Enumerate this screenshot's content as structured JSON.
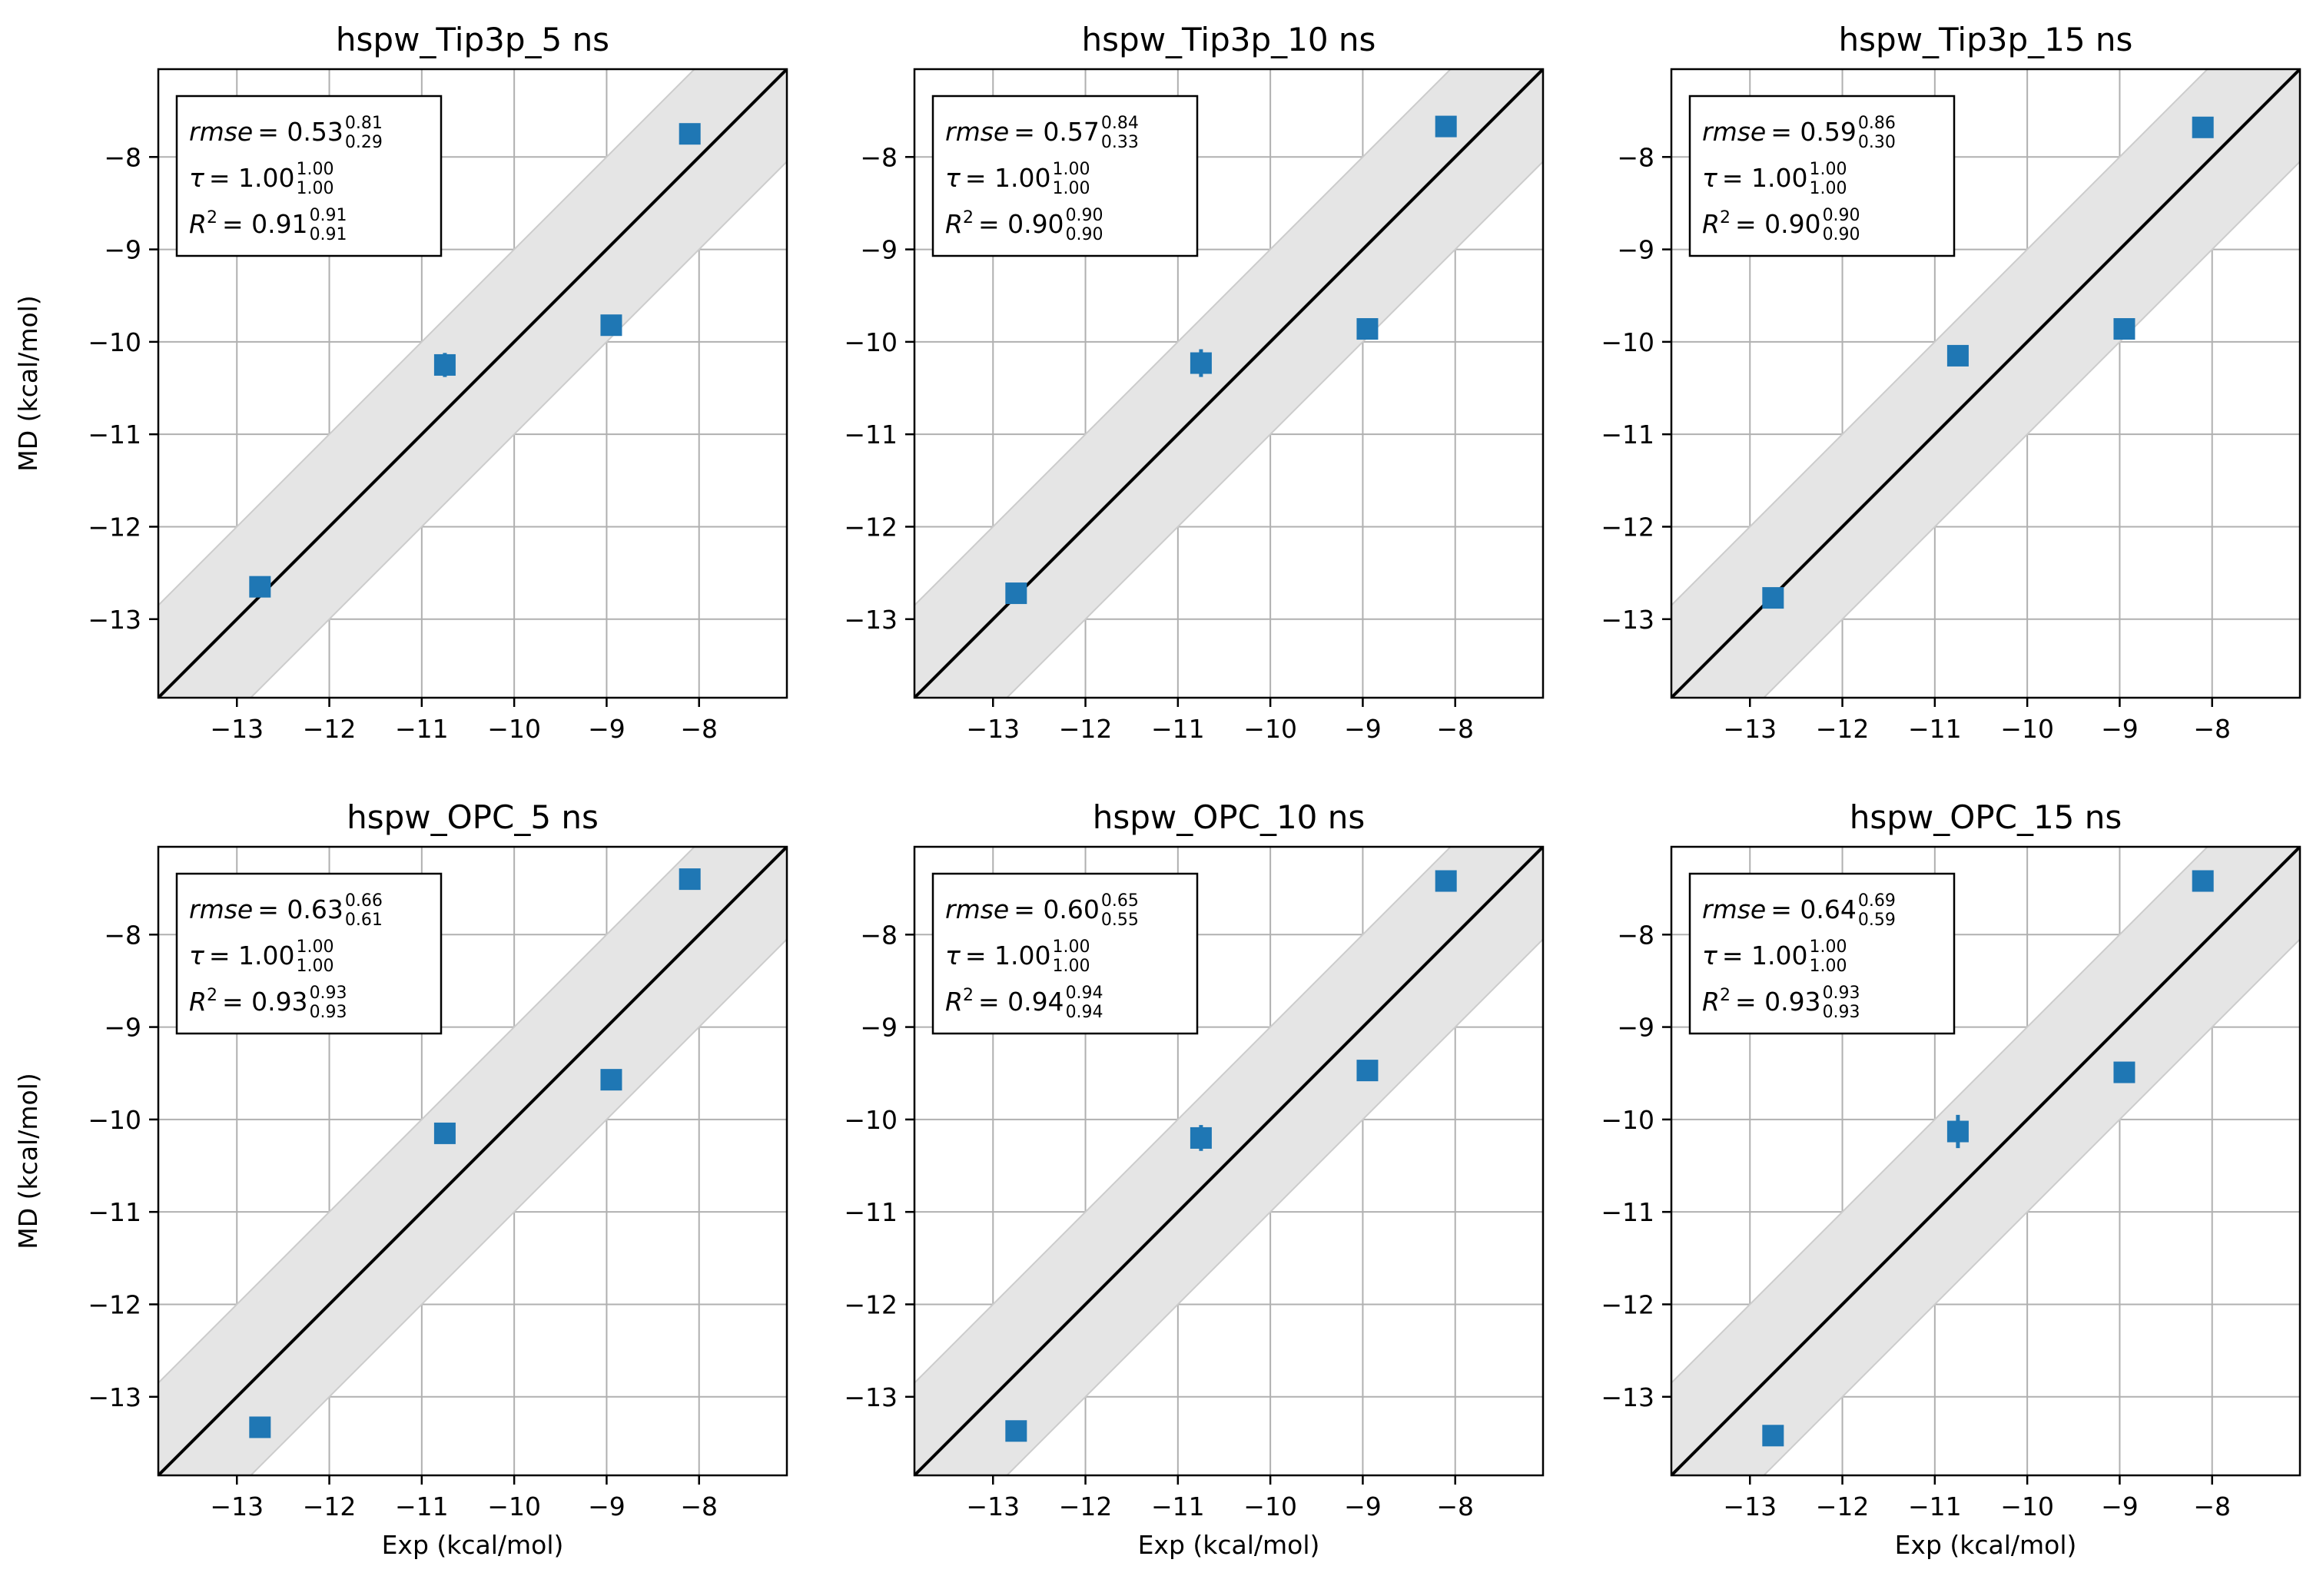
{
  "figure": {
    "xlabel": "Exp (kcal/mol)",
    "ylabel": "MD (kcal/mol)",
    "xlim": [
      -13.85,
      -7.05
    ],
    "ylim": [
      -13.85,
      -7.05
    ],
    "xticks": [
      -13,
      -12,
      -11,
      -10,
      -9,
      -8
    ],
    "yticks": [
      -13,
      -12,
      -11,
      -10,
      -9,
      -8
    ],
    "band_halfwidth": 1.0,
    "colors": {
      "marker": "#1f77b4",
      "band": "#e5e5e5",
      "band_edge": "#cccccc",
      "grid": "#b0b0b0",
      "diagonal": "#000000"
    }
  },
  "chart_data": [
    {
      "type": "scatter",
      "title": "hspw_Tip3p_5 ns",
      "stats": {
        "rmse": "0.53",
        "rmse_hi": "0.81",
        "rmse_lo": "0.29",
        "tau": "1.00",
        "tau_hi": "1.00",
        "tau_lo": "1.00",
        "r2": "0.91",
        "r2_hi": "0.91",
        "r2_lo": "0.91"
      },
      "points": [
        {
          "x": -12.75,
          "y": -12.65,
          "err": 0.04
        },
        {
          "x": -10.75,
          "y": -10.25,
          "err": 0.13
        },
        {
          "x": -8.95,
          "y": -9.82,
          "err": 0.05
        },
        {
          "x": -8.1,
          "y": -7.75,
          "err": 0.04
        }
      ]
    },
    {
      "type": "scatter",
      "title": "hspw_Tip3p_10 ns",
      "stats": {
        "rmse": "0.57",
        "rmse_hi": "0.84",
        "rmse_lo": "0.33",
        "tau": "1.00",
        "tau_hi": "1.00",
        "tau_lo": "1.00",
        "r2": "0.90",
        "r2_hi": "0.90",
        "r2_lo": "0.90"
      },
      "points": [
        {
          "x": -12.75,
          "y": -12.72,
          "err": 0.04
        },
        {
          "x": -10.75,
          "y": -10.23,
          "err": 0.15
        },
        {
          "x": -8.95,
          "y": -9.86,
          "err": 0.05
        },
        {
          "x": -8.1,
          "y": -7.67,
          "err": 0.04
        }
      ]
    },
    {
      "type": "scatter",
      "title": "hspw_Tip3p_15 ns",
      "stats": {
        "rmse": "0.59",
        "rmse_hi": "0.86",
        "rmse_lo": "0.30",
        "tau": "1.00",
        "tau_hi": "1.00",
        "tau_lo": "1.00",
        "r2": "0.90",
        "r2_hi": "0.90",
        "r2_lo": "0.90"
      },
      "points": [
        {
          "x": -12.75,
          "y": -12.77,
          "err": 0.04
        },
        {
          "x": -10.75,
          "y": -10.15,
          "err": 0.06
        },
        {
          "x": -8.95,
          "y": -9.86,
          "err": 0.05
        },
        {
          "x": -8.1,
          "y": -7.68,
          "err": 0.04
        }
      ]
    },
    {
      "type": "scatter",
      "title": "hspw_OPC_5 ns",
      "stats": {
        "rmse": "0.63",
        "rmse_hi": "0.66",
        "rmse_lo": "0.61",
        "tau": "1.00",
        "tau_hi": "1.00",
        "tau_lo": "1.00",
        "r2": "0.93",
        "r2_hi": "0.93",
        "r2_lo": "0.93"
      },
      "points": [
        {
          "x": -12.75,
          "y": -13.33,
          "err": 0.04
        },
        {
          "x": -10.75,
          "y": -10.15,
          "err": 0.1
        },
        {
          "x": -8.95,
          "y": -9.57,
          "err": 0.05
        },
        {
          "x": -8.1,
          "y": -7.4,
          "err": 0.04
        }
      ]
    },
    {
      "type": "scatter",
      "title": "hspw_OPC_10 ns",
      "stats": {
        "rmse": "0.60",
        "rmse_hi": "0.65",
        "rmse_lo": "0.55",
        "tau": "1.00",
        "tau_hi": "1.00",
        "tau_lo": "1.00",
        "r2": "0.94",
        "r2_hi": "0.94",
        "r2_lo": "0.94"
      },
      "points": [
        {
          "x": -12.75,
          "y": -13.37,
          "err": 0.04
        },
        {
          "x": -10.75,
          "y": -10.2,
          "err": 0.14
        },
        {
          "x": -8.95,
          "y": -9.47,
          "err": 0.05
        },
        {
          "x": -8.1,
          "y": -7.42,
          "err": 0.04
        }
      ]
    },
    {
      "type": "scatter",
      "title": "hspw_OPC_15 ns",
      "stats": {
        "rmse": "0.64",
        "rmse_hi": "0.69",
        "rmse_lo": "0.59",
        "tau": "1.00",
        "tau_hi": "1.00",
        "tau_lo": "1.00",
        "r2": "0.93",
        "r2_hi": "0.93",
        "r2_lo": "0.93"
      },
      "points": [
        {
          "x": -12.75,
          "y": -13.42,
          "err": 0.04
        },
        {
          "x": -10.75,
          "y": -10.13,
          "err": 0.18
        },
        {
          "x": -8.95,
          "y": -9.49,
          "err": 0.05
        },
        {
          "x": -8.1,
          "y": -7.42,
          "err": 0.04
        }
      ]
    }
  ]
}
